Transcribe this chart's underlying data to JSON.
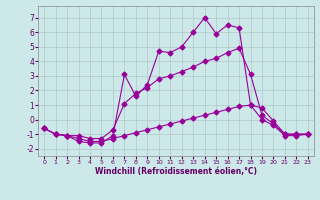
{
  "background_color": "#cce8e8",
  "grid_color": "#b0c8c8",
  "line_color": "#990099",
  "xlim": [
    -0.5,
    23.5
  ],
  "ylim": [
    -2.5,
    7.8
  ],
  "yticks": [
    -2,
    -1,
    0,
    1,
    2,
    3,
    4,
    5,
    6,
    7
  ],
  "xticks": [
    0,
    1,
    2,
    3,
    4,
    5,
    6,
    7,
    8,
    9,
    10,
    11,
    12,
    13,
    14,
    15,
    16,
    17,
    18,
    19,
    20,
    21,
    22,
    23
  ],
  "xlabel": "Windchill (Refroidissement éolien,°C)",
  "series1_x": [
    0,
    1,
    2,
    3,
    4,
    5,
    6,
    7,
    8,
    9,
    10,
    11,
    12,
    13,
    14,
    15,
    16,
    17,
    18,
    19,
    20,
    21,
    22,
    23
  ],
  "series1_y": [
    -0.6,
    -1.0,
    -1.1,
    -1.5,
    -1.6,
    -1.6,
    -1.1,
    3.1,
    1.6,
    2.4,
    4.7,
    4.6,
    5.0,
    6.0,
    7.0,
    5.9,
    6.5,
    6.3,
    1.0,
    0.0,
    -0.4,
    -1.1,
    -1.1,
    -1.0
  ],
  "series2_x": [
    0,
    1,
    2,
    3,
    4,
    5,
    6,
    7,
    8,
    9,
    10,
    11,
    12,
    13,
    14,
    15,
    16,
    17,
    18,
    19,
    20,
    21,
    22,
    23
  ],
  "series2_y": [
    -0.6,
    -1.0,
    -1.1,
    -1.1,
    -1.3,
    -1.3,
    -0.7,
    1.1,
    1.8,
    2.2,
    2.8,
    3.0,
    3.3,
    3.6,
    4.0,
    4.2,
    4.6,
    4.9,
    3.1,
    0.3,
    -0.3,
    -1.0,
    -1.0,
    -1.0
  ],
  "series3_x": [
    0,
    1,
    2,
    3,
    4,
    5,
    6,
    7,
    8,
    9,
    10,
    11,
    12,
    13,
    14,
    15,
    16,
    17,
    18,
    19,
    20,
    21,
    22,
    23
  ],
  "series3_y": [
    -0.6,
    -1.0,
    -1.1,
    -1.3,
    -1.5,
    -1.5,
    -1.3,
    -1.1,
    -0.9,
    -0.7,
    -0.5,
    -0.3,
    -0.1,
    0.1,
    0.3,
    0.5,
    0.7,
    0.9,
    1.0,
    0.8,
    -0.1,
    -1.0,
    -1.0,
    -1.0
  ],
  "marker": "D",
  "markersize": 2.5,
  "linewidth": 0.8
}
